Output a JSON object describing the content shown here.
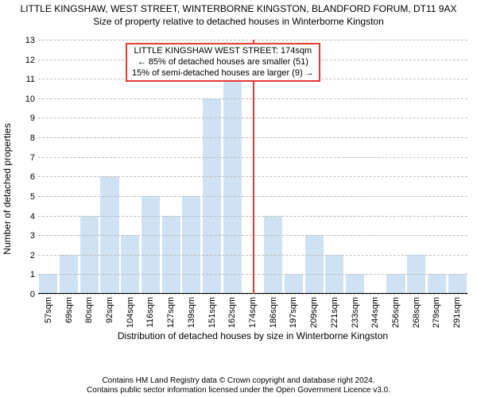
{
  "title": "LITTLE KINGSHAW, WEST STREET, WINTERBORNE KINGSTON, BLANDFORD FORUM, DT11 9AX",
  "subtitle": "Size of property relative to detached houses in Winterborne Kingston",
  "chart": {
    "type": "bar",
    "ylabel": "Number of detached properties",
    "xlabel": "Distribution of detached houses by size in Winterborne Kingston",
    "ylim": [
      0,
      13
    ],
    "yticks": [
      0,
      1,
      2,
      3,
      4,
      5,
      6,
      7,
      8,
      9,
      10,
      11,
      12,
      13
    ],
    "categories": [
      "57sqm",
      "69sqm",
      "80sqm",
      "92sqm",
      "104sqm",
      "116sqm",
      "127sqm",
      "139sqm",
      "151sqm",
      "162sqm",
      "174sqm",
      "186sqm",
      "197sqm",
      "209sqm",
      "221sqm",
      "233sqm",
      "244sqm",
      "256sqm",
      "268sqm",
      "279sqm",
      "291sqm"
    ],
    "values": [
      1,
      2,
      4,
      6,
      3,
      5,
      4,
      5,
      10,
      11,
      0,
      4,
      1,
      3,
      2,
      1,
      0,
      1,
      2,
      1,
      1
    ],
    "bar_color": "#cfe2f3",
    "grid_color": "#bdbdbd",
    "reference_index": 10,
    "reference_color": "#e53935",
    "annotation": {
      "lines": [
        "LITTLE KINGSHAW WEST STREET: 174sqm",
        "← 85% of detached houses are smaller (51)",
        "15% of semi-detached houses are larger (9) →"
      ]
    }
  },
  "footer": {
    "line1": "Contains HM Land Registry data © Crown copyright and database right 2024.",
    "line2": "Contains public sector information licensed under the Open Government Licence v3.0."
  }
}
